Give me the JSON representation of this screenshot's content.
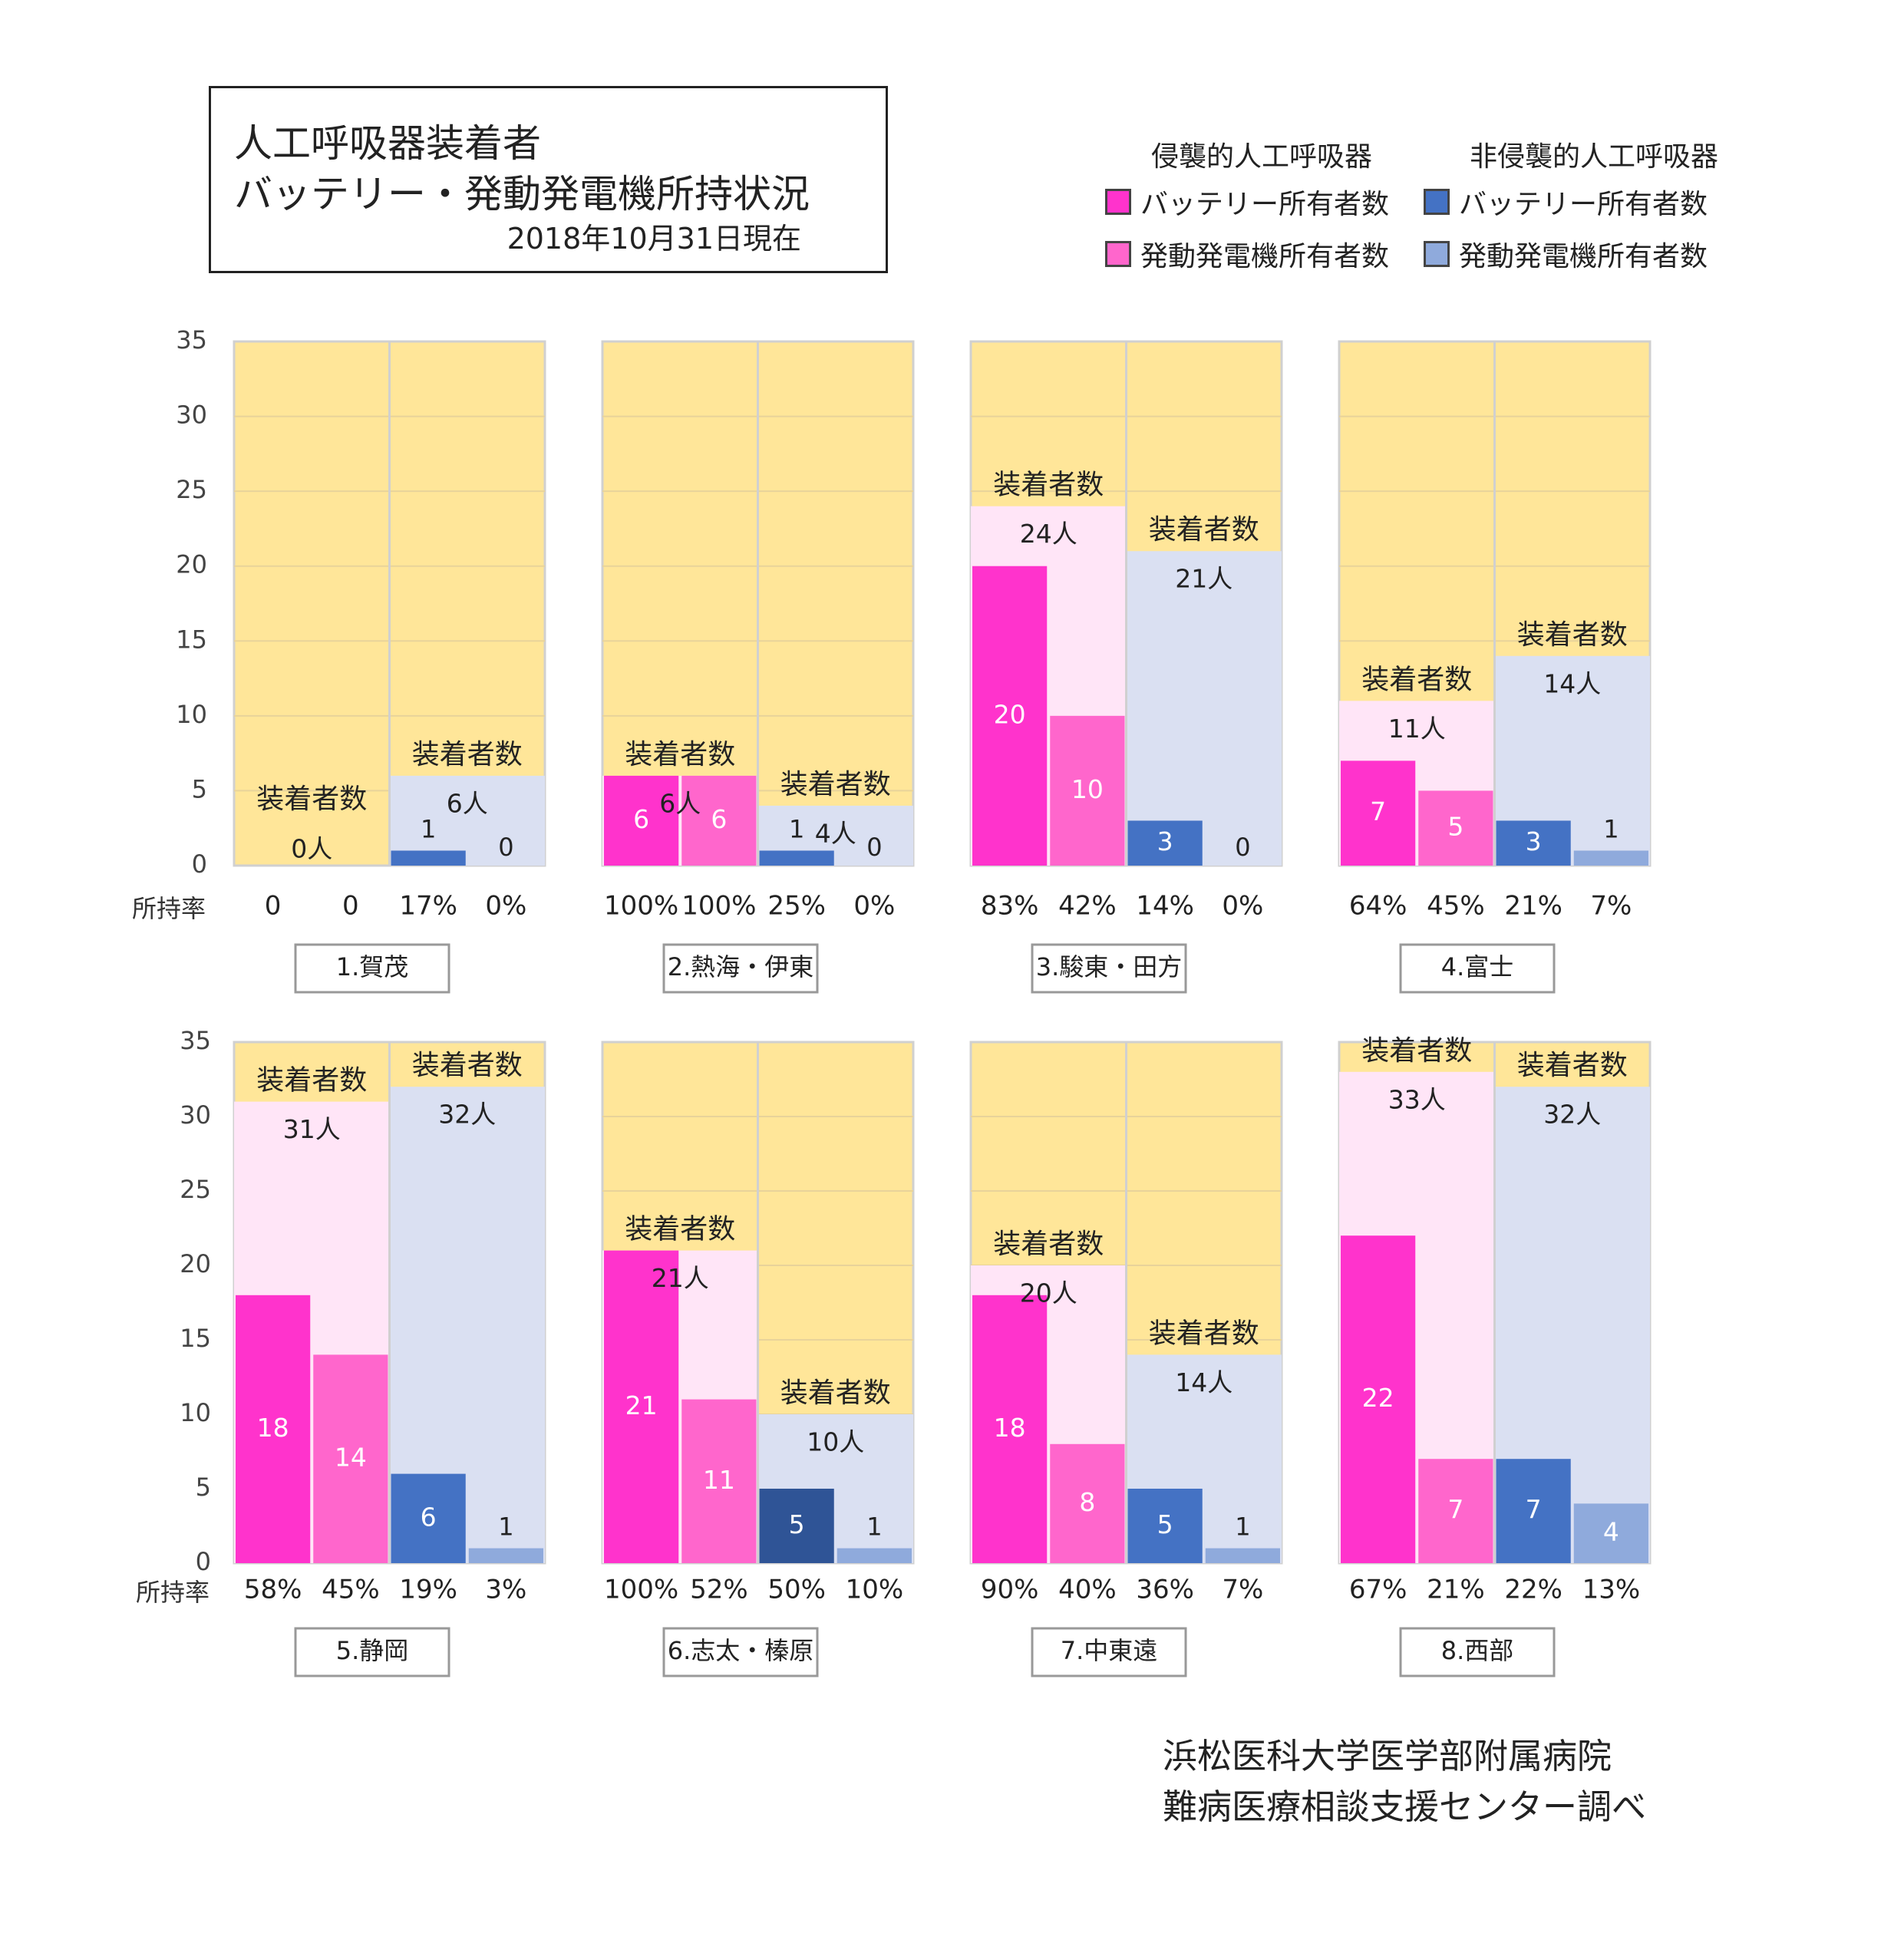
{
  "title": {
    "line1": "人工呼吸器装着者",
    "line2": "バッテリー・発動発電機所持状況",
    "date": "2018年10月31日現在"
  },
  "legend": {
    "invasive_header": "侵襲的人工呼吸器",
    "noninvasive_header": "非侵襲的人工呼吸器",
    "items": [
      {
        "label": "バッテリー所有者数",
        "color": "#FF33CC"
      },
      {
        "label": "発動発電機所有者数",
        "color": "#FF66CC"
      },
      {
        "label": "バッテリー所有者数",
        "color": "#4472C4"
      },
      {
        "label": "発動発電機所有者数",
        "color": "#8FAADC"
      }
    ]
  },
  "credit": {
    "line1": "浜松医科大学医学部附属病院",
    "line2": "難病医療相談支援センター調べ"
  },
  "colors": {
    "background": "#FFE699",
    "invasive_bg": "#FFE5F7",
    "noninvasive_bg": "#DAE0F2",
    "inv_battery": "#FF33CC",
    "inv_generator": "#FF66CC",
    "non_battery": "#4472C4",
    "non_generator": "#8FAADC",
    "non_battery_dark": "#2F5496"
  },
  "chart_data": {
    "type": "bar",
    "ylim": [
      0,
      35
    ],
    "yticks": [
      "0",
      "5",
      "10",
      "15",
      "20",
      "25",
      "30",
      "35"
    ],
    "rate_label": "所持率",
    "wearer_label": "装着者数",
    "regions": [
      {
        "name": "1.賀茂",
        "invasive": {
          "wearers": 0,
          "wearers_label": "0人",
          "battery": 0,
          "generator": 0,
          "battery_rate": "0",
          "generator_rate": "0"
        },
        "noninvasive": {
          "wearers": 6,
          "wearers_label": "6人",
          "battery": 1,
          "generator": 0,
          "battery_rate": "17%",
          "generator_rate": "0%"
        }
      },
      {
        "name": "2.熱海・伊東",
        "invasive": {
          "wearers": 6,
          "wearers_label": "6人",
          "battery": 6,
          "generator": 6,
          "battery_rate": "100%",
          "generator_rate": "100%"
        },
        "noninvasive": {
          "wearers": 4,
          "wearers_label": "4人",
          "battery": 1,
          "generator": 0,
          "battery_rate": "25%",
          "generator_rate": "0%"
        }
      },
      {
        "name": "3.駿東・田方",
        "invasive": {
          "wearers": 24,
          "wearers_label": "24人",
          "battery": 20,
          "generator": 10,
          "battery_rate": "83%",
          "generator_rate": "42%"
        },
        "noninvasive": {
          "wearers": 21,
          "wearers_label": "21人",
          "battery": 3,
          "generator": 0,
          "battery_rate": "14%",
          "generator_rate": "0%"
        }
      },
      {
        "name": "4.富士",
        "invasive": {
          "wearers": 11,
          "wearers_label": "11人",
          "battery": 7,
          "generator": 5,
          "battery_rate": "64%",
          "generator_rate": "45%"
        },
        "noninvasive": {
          "wearers": 14,
          "wearers_label": "14人",
          "battery": 3,
          "generator": 1,
          "battery_rate": "21%",
          "generator_rate": "7%"
        }
      },
      {
        "name": "5.静岡",
        "invasive": {
          "wearers": 31,
          "wearers_label": "31人",
          "battery": 18,
          "generator": 14,
          "battery_rate": "58%",
          "generator_rate": "45%"
        },
        "noninvasive": {
          "wearers": 32,
          "wearers_label": "32人",
          "battery": 6,
          "generator": 1,
          "battery_rate": "19%",
          "generator_rate": "3%"
        }
      },
      {
        "name": "6.志太・榛原",
        "invasive": {
          "wearers": 21,
          "wearers_label": "21人",
          "battery": 21,
          "generator": 11,
          "battery_rate": "100%",
          "generator_rate": "52%"
        },
        "noninvasive": {
          "wearers": 10,
          "wearers_label": "10人",
          "battery": 5,
          "generator": 1,
          "battery_rate": "50%",
          "generator_rate": "10%"
        }
      },
      {
        "name": "7.中東遠",
        "invasive": {
          "wearers": 20,
          "wearers_label": "20人",
          "battery": 18,
          "generator": 8,
          "battery_rate": "90%",
          "generator_rate": "40%"
        },
        "noninvasive": {
          "wearers": 14,
          "wearers_label": "14人",
          "battery": 5,
          "generator": 1,
          "battery_rate": "36%",
          "generator_rate": "7%"
        }
      },
      {
        "name": "8.西部",
        "invasive": {
          "wearers": 33,
          "wearers_label": "33人",
          "battery": 22,
          "generator": 7,
          "battery_rate": "67%",
          "generator_rate": "21%"
        },
        "noninvasive": {
          "wearers": 32,
          "wearers_label": "32人",
          "battery": 7,
          "generator": 4,
          "battery_rate": "22%",
          "generator_rate": "13%"
        }
      }
    ]
  }
}
